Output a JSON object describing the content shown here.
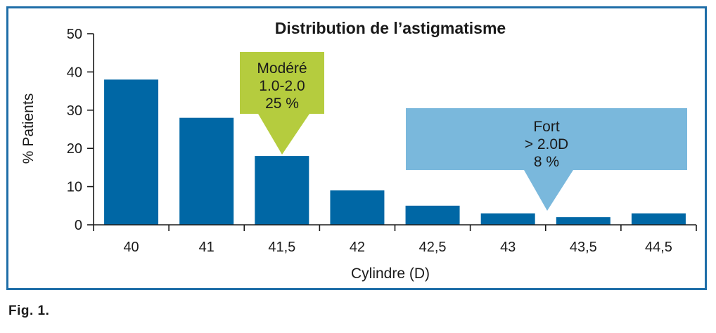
{
  "chart_data": {
    "type": "bar",
    "title": "Distribution de l’astigmatisme",
    "xlabel": "Cylindre (D)",
    "ylabel": "% Patients",
    "categories": [
      "40",
      "41",
      "41,5",
      "42",
      "42,5",
      "43",
      "43,5",
      "44,5"
    ],
    "values": [
      38,
      28,
      18,
      9,
      5,
      3,
      2,
      3
    ],
    "ylim": [
      0,
      50
    ],
    "yticks": [
      "0",
      "10",
      "20",
      "30",
      "40",
      "50"
    ],
    "grid": false,
    "bar_color": "#0067a5",
    "annotations": [
      {
        "lines": [
          "Modéré",
          "1.0-2.0",
          "25 %"
        ],
        "color": "#b5cc3e",
        "points_to_category": "41,5"
      },
      {
        "lines": [
          "Fort",
          "> 2.0D",
          "8 %"
        ],
        "color": "#7ab8dc",
        "points_to_category": "43"
      }
    ]
  },
  "caption": "Fig. 1."
}
